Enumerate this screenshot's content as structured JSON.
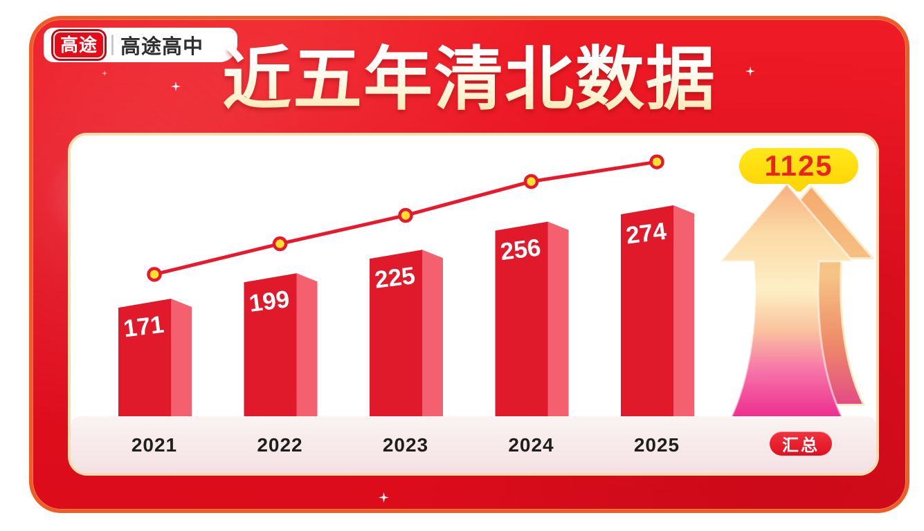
{
  "brand": {
    "logo_badge": "高途",
    "logo_text": "高途高中"
  },
  "title": "近五年清北数据",
  "chart_data": {
    "type": "bar",
    "title": "近五年清北数据",
    "categories": [
      "2021",
      "2022",
      "2023",
      "2024",
      "2025"
    ],
    "values": [
      171,
      199,
      225,
      256,
      274
    ],
    "line_overlay": "trend line with markers above bars",
    "total": 1125,
    "total_label": "汇总",
    "xlabel": "",
    "ylabel": "",
    "legend": "none",
    "grid": "off",
    "colors": {
      "bar_front": "#e11a2b",
      "bar_side": "#f5606e",
      "line": "#e8192c",
      "marker_fill": "#ffe12e",
      "marker_stroke": "#e8192c",
      "value_text": "#ffffff",
      "accent_yellow": "#ffd606",
      "panel_red": "#e20f1f",
      "panel_border_orange": "#f15b25"
    }
  }
}
